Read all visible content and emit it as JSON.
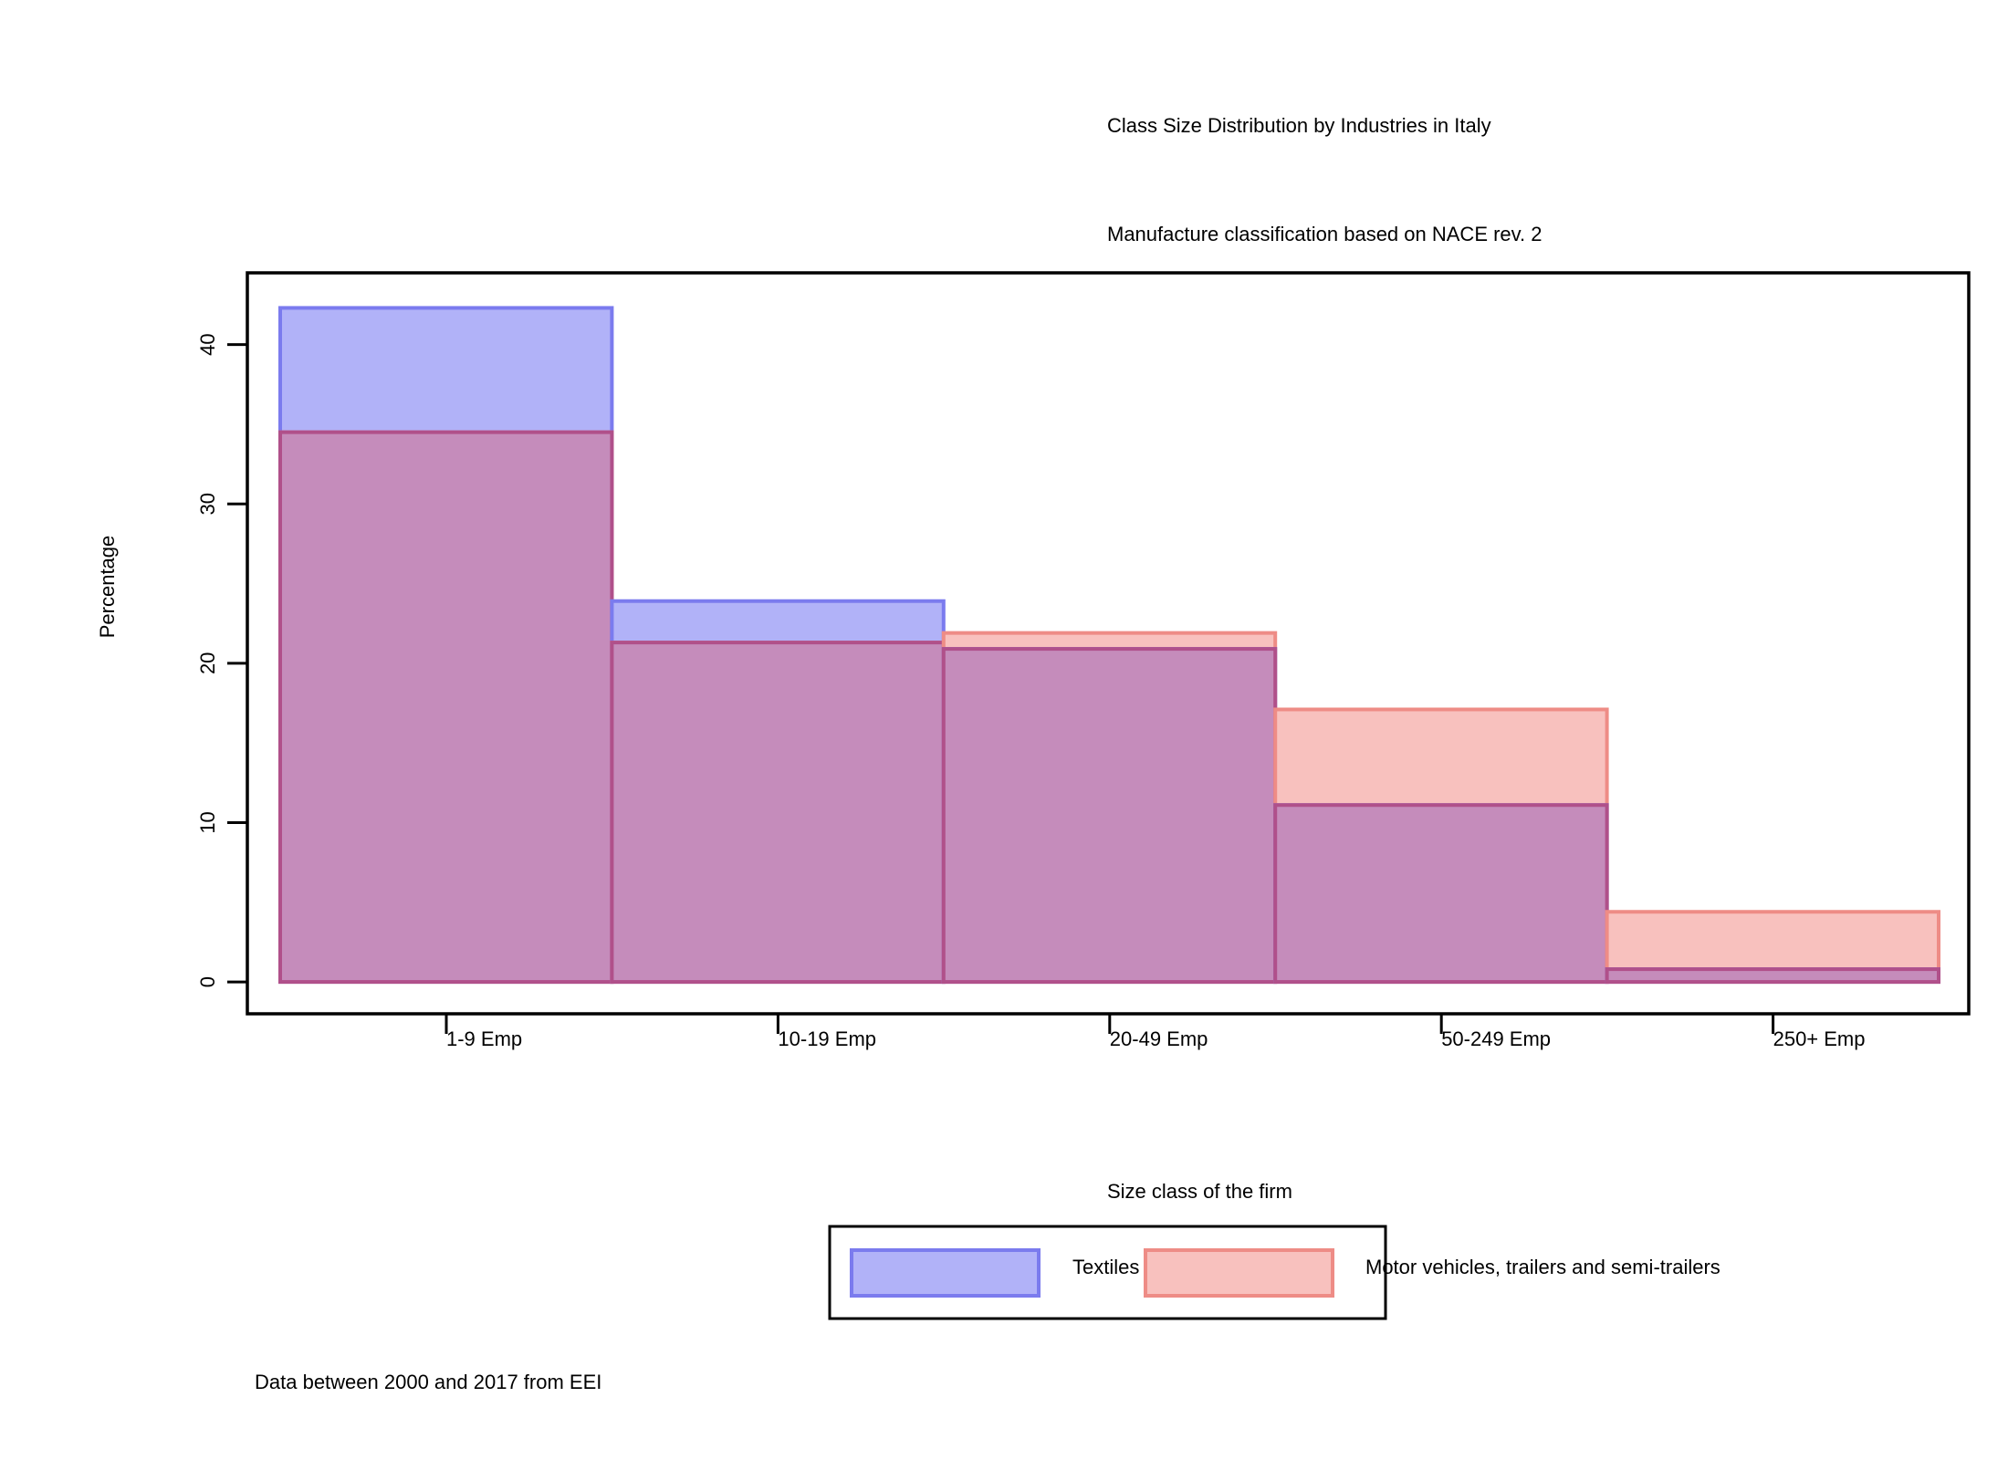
{
  "chart_data": {
    "type": "bar",
    "title": "Class Size Distribution by Industries in Italy",
    "subtitle": "Manufacture classification based on NACE rev. 2",
    "xlabel": "Size class of the firm",
    "ylabel": "Percentage",
    "caption": "Data between 2000 and 2017 from EEI",
    "categories": [
      "1-9 Emp",
      "10-19 Emp",
      "20-49 Emp",
      "50-249 Emp",
      "250+ Emp"
    ],
    "yticks": [
      "0",
      "10",
      "20",
      "30",
      "40"
    ],
    "ytick_values": [
      0,
      10,
      20,
      30,
      40
    ],
    "ylim": [
      -2,
      44.5
    ],
    "grid": false,
    "legend_position": "bottom",
    "series": [
      {
        "name": "Textiles",
        "values": [
          42.3,
          23.9,
          20.9,
          11.1,
          0.8
        ],
        "fill": "#b1b2f8",
        "stroke": "#7b7bee"
      },
      {
        "name": "Motor vehicles, trailers and semi-trailers",
        "values": [
          34.5,
          21.3,
          21.9,
          17.1,
          4.4
        ],
        "fill": "#f8c1be",
        "stroke": "#ee8c86"
      }
    ],
    "overlap_fill": "#c58cbb",
    "overlap_stroke": "#b0508a"
  }
}
